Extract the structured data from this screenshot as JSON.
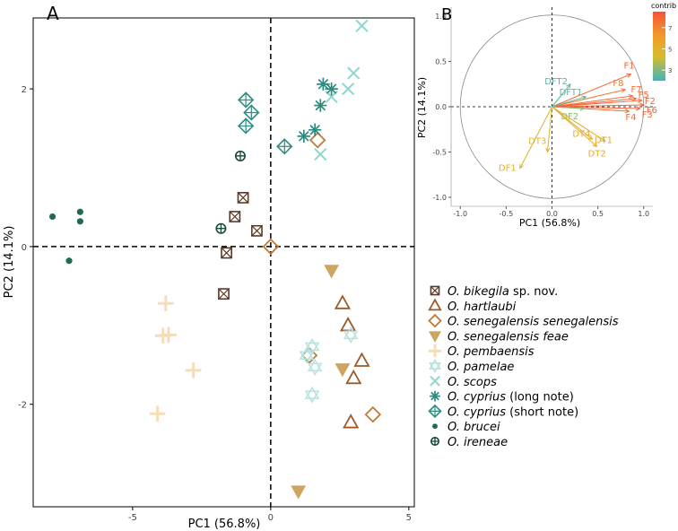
{
  "panel_labels": {
    "a": "A",
    "b": "B"
  },
  "colors": {
    "bikegila": "#5a3a28",
    "hartlaubi": "#9c5a2a",
    "senegalensis": "#c07a35",
    "feae": "#cda55f",
    "pembaensis": "#f4ddb8",
    "pamelae": "#b7e2df",
    "scops": "#8fd6cf",
    "cyprius": "#2b8c80",
    "brucei": "#1e6b55",
    "ireneae": "#174a35",
    "grid": "#bbbbbb"
  },
  "chart_data": [
    {
      "type": "scatter",
      "title": "A",
      "xlabel": "PC1 (56.8%)",
      "ylabel": "PC2 (14.1%)",
      "xlim": [
        -8.6,
        5.2
      ],
      "ylim": [
        -3.3,
        2.9
      ],
      "xticks": [
        {
          "value": -5,
          "label": "-5"
        },
        {
          "value": 0,
          "label": "0"
        },
        {
          "value": 5,
          "label": "5"
        }
      ],
      "yticks": [
        {
          "value": 2,
          "label": "2"
        },
        {
          "value": 0,
          "label": "0"
        },
        {
          "value": -2,
          "label": "-2"
        }
      ],
      "series": [
        {
          "key": "bikegila",
          "marker": "boxx",
          "name_italic": "O. bikegila",
          "name_rest": " sp. nov.",
          "points": [
            [
              -1.0,
              0.62
            ],
            [
              -1.3,
              0.38
            ],
            [
              -0.5,
              0.2
            ],
            [
              -1.6,
              -0.08
            ],
            [
              -1.7,
              -0.6
            ]
          ]
        },
        {
          "key": "hartlaubi",
          "marker": "triangle",
          "name_italic": "O. hartlaubi",
          "name_rest": "",
          "points": [
            [
              2.6,
              -0.72
            ],
            [
              2.8,
              -1.0
            ],
            [
              3.3,
              -1.45
            ],
            [
              3.0,
              -1.67
            ],
            [
              2.9,
              -2.23
            ]
          ]
        },
        {
          "key": "senegalensis",
          "marker": "diamond",
          "name_italic": "O. senegalensis senegalensis",
          "name_rest": "",
          "points": [
            [
              0.0,
              0.0
            ],
            [
              1.7,
              1.35
            ],
            [
              1.4,
              -1.38
            ],
            [
              3.7,
              -2.13
            ]
          ]
        },
        {
          "key": "feae",
          "marker": "tri_down",
          "name_italic": "O. senegalensis feae",
          "name_rest": "",
          "points": [
            [
              2.2,
              -0.3
            ],
            [
              2.6,
              -1.55
            ],
            [
              1.0,
              -3.1
            ]
          ]
        },
        {
          "key": "pembaensis",
          "marker": "plus",
          "name_italic": "O. pembaensis",
          "name_rest": "",
          "points": [
            [
              -3.8,
              -0.72
            ],
            [
              -3.9,
              -1.13
            ],
            [
              -3.7,
              -1.12
            ],
            [
              -2.8,
              -1.57
            ],
            [
              -4.1,
              -2.12
            ]
          ]
        },
        {
          "key": "pamelae",
          "marker": "star",
          "name_italic": "O. pamelae",
          "name_rest": "",
          "points": [
            [
              1.5,
              -1.27
            ],
            [
              1.3,
              -1.38
            ],
            [
              1.6,
              -1.53
            ],
            [
              1.5,
              -1.88
            ],
            [
              2.9,
              -1.12
            ]
          ]
        },
        {
          "key": "scops",
          "marker": "x",
          "name_italic": "O. scops",
          "name_rest": "",
          "points": [
            [
              3.3,
              2.8
            ],
            [
              3.0,
              2.2
            ],
            [
              2.8,
              2.0
            ],
            [
              2.2,
              1.9
            ],
            [
              1.8,
              1.17
            ]
          ]
        },
        {
          "key": "cyprius",
          "marker": "asterisk",
          "name_italic": "O. cyprius",
          "name_rest": " (long note)",
          "points": [
            [
              1.9,
              2.06
            ],
            [
              2.2,
              2.0
            ],
            [
              1.8,
              1.79
            ],
            [
              1.6,
              1.48
            ],
            [
              1.2,
              1.4
            ]
          ]
        },
        {
          "key": "cyprius",
          "marker": "diamondplus",
          "name_italic": "O. cyprius",
          "name_rest": " (short note)",
          "points": [
            [
              -0.9,
              1.86
            ],
            [
              -0.7,
              1.7
            ],
            [
              -0.9,
              1.53
            ],
            [
              0.5,
              1.27
            ]
          ]
        },
        {
          "key": "brucei",
          "marker": "dot",
          "name_italic": "O. brucei",
          "name_rest": "",
          "points": [
            [
              -7.9,
              0.38
            ],
            [
              -7.3,
              -0.18
            ],
            [
              -6.9,
              0.44
            ],
            [
              -6.9,
              0.32
            ]
          ]
        },
        {
          "key": "ireneae",
          "marker": "circleplus",
          "name_italic": "O. ireneae",
          "name_rest": "",
          "points": [
            [
              -1.8,
              0.23
            ],
            [
              -1.1,
              1.15
            ]
          ]
        }
      ]
    },
    {
      "type": "pca_biplot",
      "title": "B",
      "xlabel": "PC1 (56.8%)",
      "ylabel": "PC2 (14.1%)",
      "xlim": [
        -1.1,
        1.1
      ],
      "ylim": [
        -1.1,
        1.1
      ],
      "xticks": [
        {
          "value": -1.0,
          "label": "-1.0"
        },
        {
          "value": -0.5,
          "label": "-0.5"
        },
        {
          "value": 0.0,
          "label": "0.0"
        },
        {
          "value": 0.5,
          "label": "0.5"
        },
        {
          "value": 1.0,
          "label": "1.0"
        }
      ],
      "yticks": [
        {
          "value": 1.0,
          "label": "1.0"
        },
        {
          "value": 0.5,
          "label": "0.5"
        },
        {
          "value": 0.0,
          "label": "0.0"
        },
        {
          "value": -0.5,
          "label": "-0.5"
        },
        {
          "value": -1.0,
          "label": "-1.0"
        }
      ],
      "colorbar": {
        "title": "contrib",
        "ticks": [
          {
            "value": 7,
            "label": "7"
          },
          {
            "value": 5,
            "label": "5"
          },
          {
            "value": 3,
            "label": "3"
          }
        ],
        "range": [
          2,
          8.5
        ]
      },
      "arrows": [
        {
          "name": "F1",
          "x": 0.86,
          "y": 0.36,
          "contrib": 8.0
        },
        {
          "name": "F8",
          "x": 0.8,
          "y": 0.19,
          "contrib": 7.4
        },
        {
          "name": "F7",
          "x": 0.88,
          "y": 0.12,
          "contrib": 7.8
        },
        {
          "name": "F5",
          "x": 0.92,
          "y": 0.09,
          "contrib": 8.0
        },
        {
          "name": "F2",
          "x": 0.98,
          "y": 0.07,
          "contrib": 8.1
        },
        {
          "name": "F6",
          "x": 1.0,
          "y": 0.02,
          "contrib": 8.2
        },
        {
          "name": "F3",
          "x": 0.96,
          "y": -0.02,
          "contrib": 8.0
        },
        {
          "name": "F4",
          "x": 0.84,
          "y": -0.05,
          "contrib": 7.8
        },
        {
          "name": "DFT2",
          "x": 0.2,
          "y": 0.25,
          "contrib": 2.3
        },
        {
          "name": "DFT1",
          "x": 0.37,
          "y": 0.11,
          "contrib": 2.6
        },
        {
          "name": "DF2",
          "x": 0.35,
          "y": -0.02,
          "contrib": 3.2
        },
        {
          "name": "DT1",
          "x": 0.58,
          "y": -0.38,
          "contrib": 5.6
        },
        {
          "name": "DT2",
          "x": 0.49,
          "y": -0.44,
          "contrib": 5.5
        },
        {
          "name": "DT4",
          "x": 0.44,
          "y": -0.36,
          "contrib": 5.4
        },
        {
          "name": "DT3",
          "x": -0.05,
          "y": -0.5,
          "contrib": 5.0
        },
        {
          "name": "DF1",
          "x": -0.35,
          "y": -0.68,
          "contrib": 5.2
        }
      ]
    }
  ]
}
